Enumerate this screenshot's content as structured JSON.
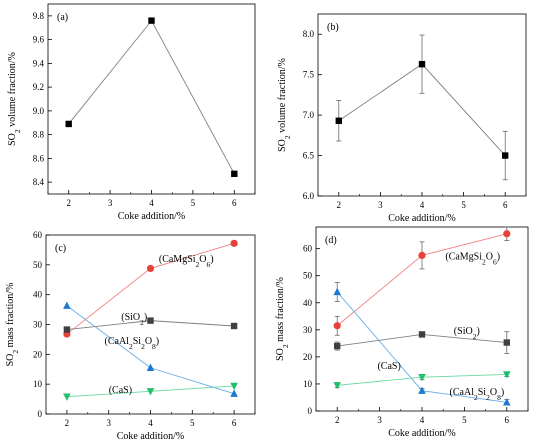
{
  "chart_data": [
    {
      "type": "line",
      "panel_label": "(a)",
      "xlabel": "Coke addition/%",
      "ylabel": "SO₂ volume fraction/%",
      "xlim": [
        1.5,
        6.5
      ],
      "ylim": [
        8.3,
        9.9
      ],
      "xticks": [
        2,
        3,
        4,
        5,
        6
      ],
      "yticks": [
        8.4,
        8.6,
        8.8,
        9.0,
        9.2,
        9.4,
        9.6,
        9.8
      ],
      "ytick_decimals": 1,
      "series": [
        {
          "color": "#808080",
          "marker": "square",
          "marker_color": "#000000",
          "x": [
            2,
            4,
            6
          ],
          "y": [
            8.89,
            9.76,
            8.47
          ]
        }
      ],
      "annotations": []
    },
    {
      "type": "line",
      "panel_label": "(b)",
      "xlabel": "Coke addition/%",
      "ylabel": "SO₂ volume fraction/%",
      "xlim": [
        1.5,
        6.5
      ],
      "ylim": [
        6.0,
        8.25
      ],
      "xticks": [
        2,
        3,
        4,
        5,
        6
      ],
      "yticks": [
        6.0,
        6.5,
        7.0,
        7.5,
        8.0
      ],
      "ytick_decimals": 1,
      "series": [
        {
          "color": "#808080",
          "marker": "square",
          "marker_color": "#000000",
          "x": [
            2,
            4,
            6
          ],
          "y": [
            6.93,
            7.63,
            6.5
          ],
          "err": [
            0.25,
            0.36,
            0.3
          ]
        }
      ],
      "annotations": []
    },
    {
      "type": "line",
      "panel_label": "(c)",
      "xlabel": "Coke addition/%",
      "ylabel": "SO₂ mass fraction/%",
      "xlim": [
        1.5,
        6.5
      ],
      "ylim": [
        0,
        60
      ],
      "xticks": [
        2,
        3,
        4,
        5,
        6
      ],
      "yticks": [
        0,
        10,
        20,
        30,
        40,
        50,
        60
      ],
      "ytick_decimals": 0,
      "series": [
        {
          "name": "(CaMgSi₂O₆)",
          "color": "#f08080",
          "marker": "circle",
          "marker_color": "#e8413c",
          "x": [
            2,
            4,
            6
          ],
          "y": [
            26.8,
            48.8,
            57.2
          ]
        },
        {
          "name": "(SiO₂)",
          "color": "#808080",
          "marker": "square",
          "marker_color": "#404040",
          "x": [
            2,
            4,
            6
          ],
          "y": [
            28.3,
            31.3,
            29.5
          ]
        },
        {
          "name": "(CaAl₂Si₂O₈)",
          "color": "#6aaee8",
          "marker": "triangle-up",
          "marker_color": "#1f77d0",
          "x": [
            2,
            4,
            6
          ],
          "y": [
            36.3,
            15.5,
            6.8
          ]
        },
        {
          "name": "(CaS)",
          "color": "#66d9a0",
          "marker": "triangle-down",
          "marker_color": "#22c06a",
          "x": [
            2,
            4,
            6
          ],
          "y": [
            5.8,
            7.6,
            9.4
          ]
        }
      ],
      "annotations": [
        {
          "text": "(CaMgSi₂O₆)",
          "x": 4.2,
          "y": 51
        },
        {
          "text": "(SiO₂)",
          "x": 3.3,
          "y": 31.5
        },
        {
          "text": "(CaAl₂Si₂O₈)",
          "x": 2.9,
          "y": 23.5
        },
        {
          "text": "(CaS)",
          "x": 3.0,
          "y": 7.0
        }
      ]
    },
    {
      "type": "line",
      "panel_label": "(d)",
      "xlabel": "Coke addition/%",
      "ylabel": "SO₂ mass fraction/%",
      "xlim": [
        1.5,
        6.5
      ],
      "ylim": [
        0,
        68
      ],
      "xticks": [
        2,
        3,
        4,
        5,
        6
      ],
      "yticks": [
        0,
        10,
        20,
        30,
        40,
        50,
        60
      ],
      "ytick_decimals": 0,
      "series": [
        {
          "name": "(CaMgSi₂O₆)",
          "color": "#f08080",
          "marker": "circle",
          "marker_color": "#e8413c",
          "x": [
            2,
            4,
            6
          ],
          "y": [
            31.5,
            57.5,
            65.5
          ],
          "err": [
            3.5,
            5.0,
            2.5
          ]
        },
        {
          "name": "(SiO₂)",
          "color": "#808080",
          "marker": "square",
          "marker_color": "#404040",
          "x": [
            2,
            4,
            6
          ],
          "y": [
            24,
            28.3,
            25.3
          ],
          "err": [
            1.5,
            0.8,
            4.0
          ]
        },
        {
          "name": "(CaAl₂Si₂O₈)",
          "color": "#6aaee8",
          "marker": "triangle-up",
          "marker_color": "#1f77d0",
          "x": [
            2,
            4,
            6
          ],
          "y": [
            44,
            7.5,
            3.2
          ],
          "err": [
            3.5,
            0.8,
            1.0
          ]
        },
        {
          "name": "(CaS)",
          "color": "#66d9a0",
          "marker": "triangle-down",
          "marker_color": "#22c06a",
          "x": [
            2,
            4,
            6
          ],
          "y": [
            9.5,
            12.5,
            13.5
          ],
          "err": [
            0.8,
            0.8,
            0.8
          ]
        }
      ],
      "annotations": [
        {
          "text": "(CaMgSi₂O₆)",
          "x": 4.55,
          "y": 56
        },
        {
          "text": "(SiO₂)",
          "x": 4.75,
          "y": 28.5
        },
        {
          "text": "(CaS)",
          "x": 2.95,
          "y": 15.5
        },
        {
          "text": "(CaAl₂Si₂O₈)",
          "x": 4.65,
          "y": 6
        }
      ]
    }
  ]
}
